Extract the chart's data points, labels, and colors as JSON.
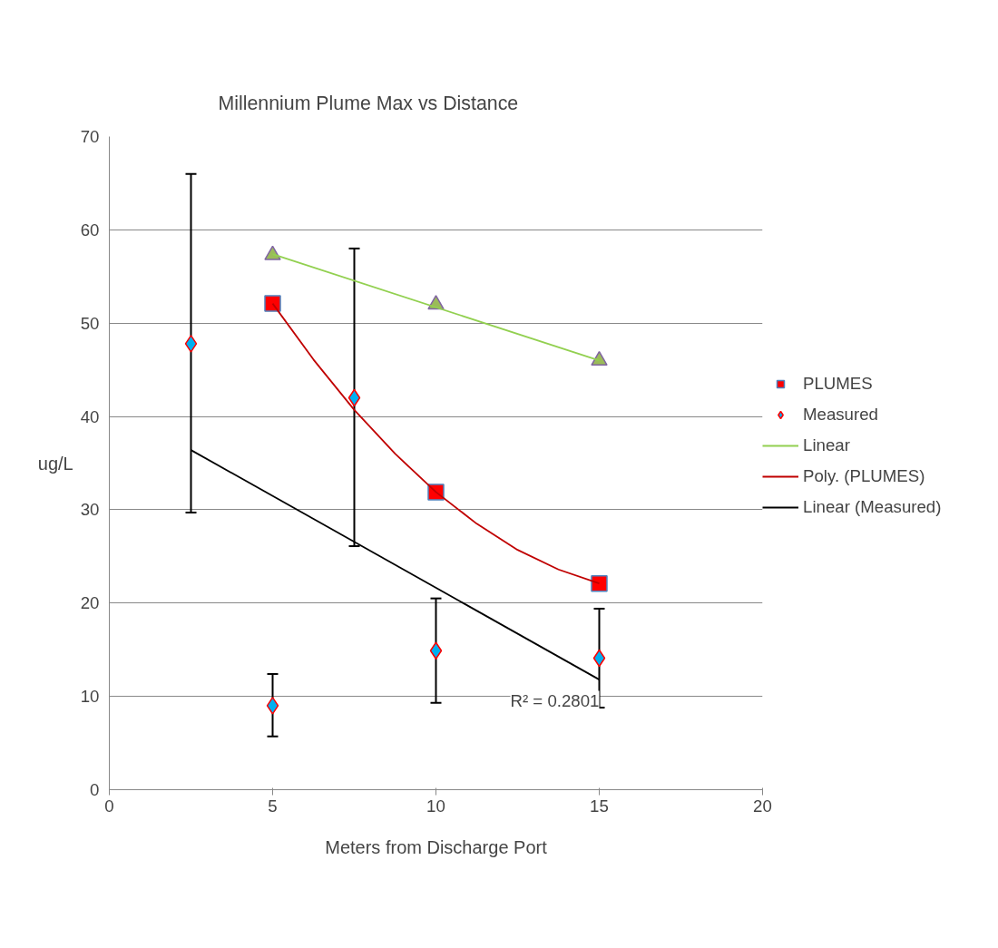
{
  "chart_data": {
    "type": "scatter",
    "title": "Millennium Plume Max vs Distance",
    "xlabel": "Meters from Discharge Port",
    "ylabel": "ug/L",
    "xlim": [
      0,
      20
    ],
    "xticks": [
      0,
      5,
      10,
      15,
      20
    ],
    "ylim": [
      0,
      70
    ],
    "yticks": [
      0,
      10,
      20,
      30,
      40,
      50,
      60,
      70
    ],
    "grid": "y",
    "legend": "right",
    "series": [
      {
        "marker": "triangle",
        "color": "#9bbb59",
        "x": [
          5,
          10,
          15
        ],
        "values": [
          57.3,
          52.0,
          46.0
        ]
      },
      {
        "name": "PLUMES",
        "marker": "square",
        "color": "#ff0000",
        "x": [
          5,
          10,
          15
        ],
        "values": [
          52.1,
          31.9,
          22.1
        ]
      },
      {
        "name": "Measured",
        "marker": "diamond",
        "color": "#00b0f0",
        "x": [
          2.5,
          5,
          7.5,
          10,
          15
        ],
        "values": [
          47.8,
          9.0,
          42.0,
          14.9,
          14.1
        ],
        "errors": [
          [
            29.7,
            66.0
          ],
          [
            5.7,
            12.4
          ],
          [
            26.1,
            58.0
          ],
          [
            9.3,
            20.5
          ],
          [
            8.8,
            19.4
          ]
        ]
      },
      {
        "name": "Linear",
        "type": "line",
        "color": "#92d050",
        "x": [
          5,
          15
        ],
        "values": [
          57.4,
          46.0
        ]
      },
      {
        "name": "Poly. (PLUMES)",
        "type": "line",
        "color": "#c00000",
        "x": [
          5,
          6.25,
          7.5,
          8.75,
          10,
          11.25,
          12.5,
          13.75,
          15
        ],
        "values": [
          52.1,
          46.1,
          40.7,
          36.0,
          31.9,
          28.5,
          25.7,
          23.6,
          22.1
        ]
      },
      {
        "name": "Linear (Measured)",
        "type": "line",
        "color": "#000000",
        "x": [
          2.5,
          15
        ],
        "values": [
          36.4,
          11.8
        ]
      }
    ],
    "annotations": [
      "R² = 0.2801"
    ]
  }
}
